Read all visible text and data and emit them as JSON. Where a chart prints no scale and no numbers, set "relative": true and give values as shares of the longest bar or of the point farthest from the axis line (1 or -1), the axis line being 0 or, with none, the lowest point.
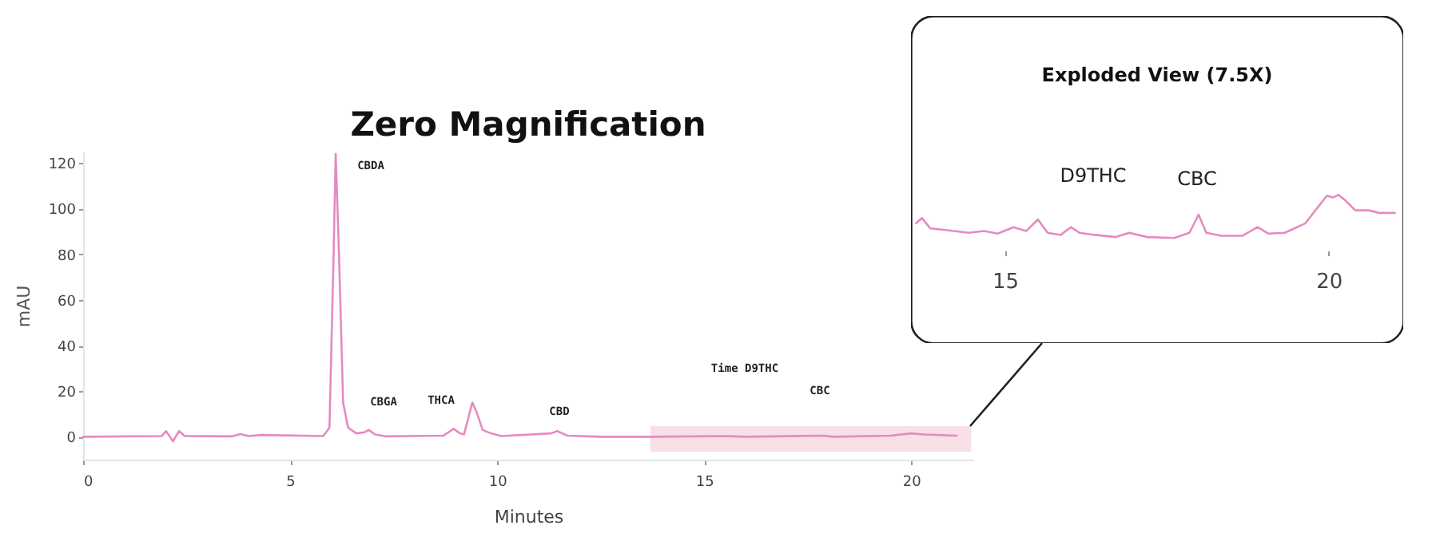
{
  "chart_data": [
    {
      "type": "line",
      "title": "Zero Magnification",
      "xlabel": "Minutes",
      "ylabel": "mAU",
      "xlim": [
        0,
        21.5
      ],
      "xticks": [
        0,
        5,
        10,
        15,
        20
      ],
      "ylim": [
        -10,
        125
      ],
      "yticks": [
        0,
        20,
        40,
        60,
        80,
        100,
        120
      ],
      "x": [
        0,
        1.9,
        2.0,
        2.1,
        2.17,
        2.25,
        2.32,
        2.45,
        3.6,
        3.8,
        4.0,
        4.3,
        5.8,
        5.95,
        6.05,
        6.1,
        6.18,
        6.28,
        6.4,
        6.6,
        6.8,
        6.9,
        7.05,
        7.3,
        8.7,
        8.95,
        9.1,
        9.2,
        9.3,
        9.4,
        9.5,
        9.65,
        9.85,
        10.1,
        11.3,
        11.45,
        11.7,
        12.5,
        13.7,
        15.5,
        16,
        17.9,
        18.1,
        19.5,
        20.0,
        20.3,
        21.1
      ],
      "series": [
        {
          "color": "#e68ac0",
          "values": [
            0,
            0.3,
            2.5,
            0,
            -2,
            0.5,
            2.5,
            0.3,
            0.2,
            1.2,
            0.3,
            0.8,
            0.3,
            4,
            80,
            124,
            80,
            15,
            4,
            1.5,
            2,
            3,
            1,
            0.2,
            0.5,
            3.5,
            1.5,
            1,
            8,
            15,
            11,
            3,
            1.5,
            0.3,
            1.5,
            2.5,
            0.5,
            0,
            0,
            0.3,
            0,
            0.5,
            0,
            0.5,
            1.5,
            1,
            0.5
          ]
        }
      ],
      "annotations": [
        "CBDA",
        "CBGA",
        "THCA",
        "CBD",
        "Time D9THC",
        "CBC"
      ],
      "bands": [
        {
          "axis": "x",
          "from": 13.7,
          "to": 21.45,
          "color": "#f6dde3"
        }
      ]
    },
    {
      "type": "line",
      "title": "Exploded View (7.5X)",
      "relative": true,
      "tick_labels": "x",
      "xlim": [
        13.55,
        21.15
      ],
      "xticks": [
        15,
        20
      ],
      "x": [
        13.63,
        13.72,
        13.85,
        14.11,
        14.44,
        14.68,
        14.89,
        15.13,
        15.33,
        15.51,
        15.66,
        15.86,
        16.02,
        16.15,
        16.39,
        16.71,
        16.92,
        17.2,
        17.61,
        17.85,
        17.99,
        18.11,
        18.34,
        18.67,
        18.9,
        19.07,
        19.32,
        19.64,
        19.97,
        20.07,
        20.15,
        20.25,
        20.41,
        20.62,
        20.78,
        21.02
      ],
      "series": [
        {
          "color": "#e68ac0",
          "values": [
            0.34,
            0.46,
            0.22,
            0.18,
            0.12,
            0.16,
            0.1,
            0.25,
            0.16,
            0.43,
            0.12,
            0.07,
            0.25,
            0.12,
            0.07,
            0.02,
            0.12,
            0.02,
            0,
            0.12,
            0.54,
            0.12,
            0.05,
            0.05,
            0.25,
            0.1,
            0.12,
            0.34,
            0.98,
            0.94,
            1,
            0.88,
            0.64,
            0.64,
            0.58,
            0.58
          ]
        }
      ],
      "annotations": [
        "D9THC",
        "CBC"
      ]
    }
  ]
}
